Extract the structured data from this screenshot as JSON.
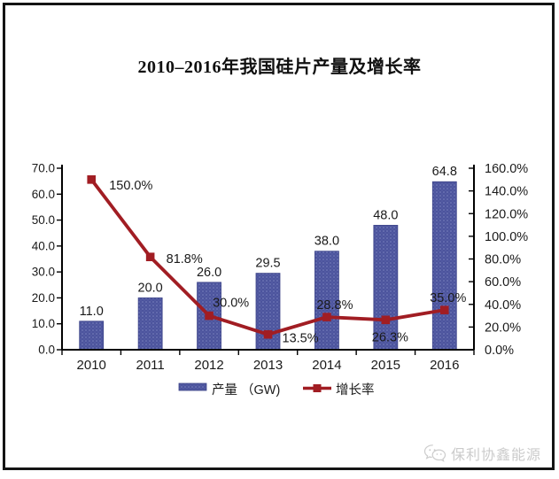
{
  "chart_data": {
    "type": "combo (bar + line)",
    "title": "2010–2016年我国硅片产量及增长率",
    "categories": [
      "2010",
      "2011",
      "2012",
      "2013",
      "2014",
      "2015",
      "2016"
    ],
    "series": [
      {
        "name": "产量 （GW)",
        "type": "bar",
        "axis": "left",
        "color": "#4c549d",
        "values": [
          11.0,
          20.0,
          26.0,
          29.5,
          38.0,
          48.0,
          64.8
        ],
        "labels": [
          "11.0",
          "20.0",
          "26.0",
          "29.5",
          "38.0",
          "48.0",
          "64.8"
        ]
      },
      {
        "name": "增长率",
        "type": "line",
        "axis": "right",
        "color": "#a11d23",
        "values": [
          150.0,
          81.8,
          30.0,
          13.5,
          28.8,
          26.3,
          35.0
        ],
        "labels": [
          "150.0%",
          "81.8%",
          "30.0%",
          "13.5%",
          "28.8%",
          "26.3%",
          "35.0%"
        ]
      }
    ],
    "left_axis": {
      "min": 0,
      "max": 70,
      "step": 10,
      "tick_labels": [
        "0.0",
        "10.0",
        "20.0",
        "30.0",
        "40.0",
        "50.0",
        "60.0",
        "70.0"
      ]
    },
    "right_axis": {
      "min": 0,
      "max": 160,
      "step": 20,
      "tick_labels": [
        "0.0%",
        "20.0%",
        "40.0%",
        "60.0%",
        "80.0%",
        "100.0%",
        "120.0%",
        "140.0%",
        "160.0%"
      ]
    },
    "legend_position": "bottom",
    "grid": false
  },
  "watermark": {
    "brand": "保利协鑫能源",
    "icon": "wechat-icon"
  }
}
